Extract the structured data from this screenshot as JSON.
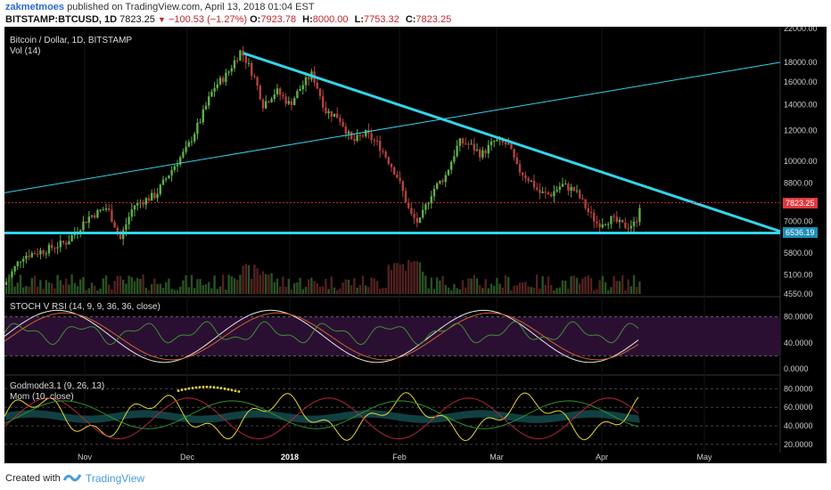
{
  "header": {
    "author": "zakmetmoes",
    "published": "published on TradingView.com, April 13, 2018 01:04 EST",
    "symbol": "BITSTAMP:BTCUSD, 1D",
    "last": "7823.25",
    "change": "−100.53 (−1.27%)",
    "open_label": "O:",
    "open": "7923.78",
    "high_label": "H:",
    "high": "8000.00",
    "low_label": "L:",
    "low": "7753.32",
    "close_label": "C:",
    "close": "7823.25"
  },
  "main_pane": {
    "title": "Bitcoin / Dollar, 1D, BITSTAMP",
    "vol_label": "Vol (14)",
    "y_ticks": [
      "22000.00",
      "18000.00",
      "16000.00",
      "14000.00",
      "12000.00",
      "10000.00",
      "8800.00",
      "7000.00",
      "5800.00",
      "5100.00",
      "4550.00"
    ],
    "current_price_tag": "7823.25",
    "support_tag": "6536.19"
  },
  "stoch_pane": {
    "title": "STOCH V RSI (14, 9, 9, 36, 36, close)",
    "y_ticks": [
      "80.0000",
      "40.0000",
      "0.0000"
    ]
  },
  "godmode_pane": {
    "title": "Godmode3.1 (9, 26, 13)",
    "mom_label": "Mom (10, close)",
    "y_ticks": [
      "80.0000",
      "60.0000",
      "40.0000",
      "20.0000"
    ]
  },
  "x_axis": {
    "ticks": [
      "Nov",
      "Dec",
      "2018",
      "Feb",
      "Mar",
      "Apr",
      "May"
    ]
  },
  "footer": {
    "created_with": "Created with",
    "brand": "TradingView"
  },
  "colors": {
    "up": "#5fae4a",
    "down": "#b3423e",
    "trendline": "#35d3ea",
    "background": "#000000",
    "price_tag": "#e0393e",
    "support_tag": "#1f8fb5"
  },
  "chart_data": {
    "type": "candlestick",
    "title": "Bitcoin / Dollar, 1D, BITSTAMP",
    "x_ticks": [
      "Nov",
      "Dec",
      "2018",
      "Feb",
      "Mar",
      "Apr",
      "May"
    ],
    "y_scale": "log",
    "ylim": [
      4550,
      22000
    ],
    "close_series_approx": [
      [
        "Oct",
        5600
      ],
      [
        "Nov",
        7000
      ],
      [
        "Nov-15",
        6400
      ],
      [
        "Dec-01",
        10200
      ],
      [
        "Dec-08",
        15000
      ],
      [
        "Dec-17",
        19400
      ],
      [
        "Dec-22",
        13800
      ],
      [
        "Jan-01",
        14000
      ],
      [
        "Jan-06",
        17000
      ],
      [
        "Jan-17",
        11000
      ],
      [
        "Feb-01",
        9100
      ],
      [
        "Feb-06",
        6900
      ],
      [
        "Feb-20",
        11200
      ],
      [
        "Mar-05",
        11500
      ],
      [
        "Mar-18",
        8200
      ],
      [
        "Mar-25",
        8800
      ],
      [
        "Apr-01",
        6800
      ],
      [
        "Apr-12",
        7823.25
      ]
    ],
    "levels": {
      "support": 6536.19,
      "last": 7823.25
    }
  }
}
